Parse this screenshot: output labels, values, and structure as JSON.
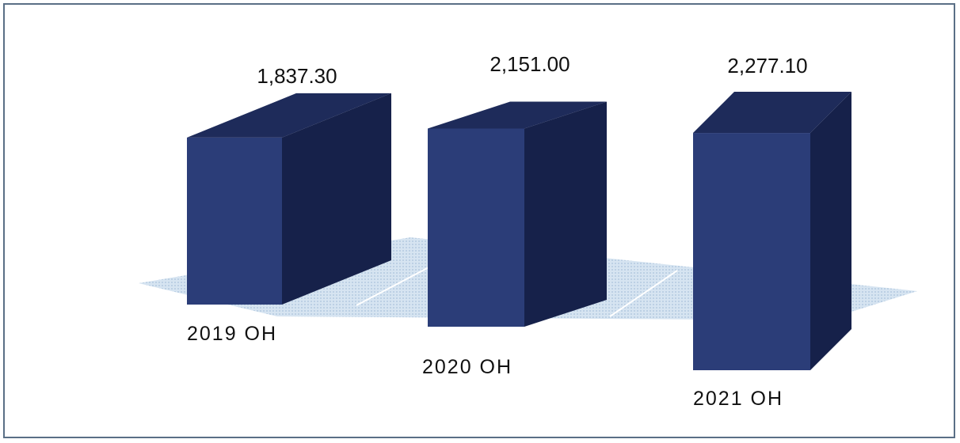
{
  "chart_data": {
    "type": "bar",
    "style": "3d-column",
    "categories": [
      "2019 OH",
      "2020 OH",
      "2021 OH"
    ],
    "series": [
      {
        "values": [
          1837.3,
          2151.0,
          2277.1
        ]
      }
    ],
    "data_labels": [
      "1,837.30",
      "2,151.00",
      "2,277.10"
    ],
    "title": "",
    "xlabel": "",
    "ylabel": "",
    "grid": false,
    "legend": "none",
    "colors": {
      "bar_front": "#2b3d78",
      "bar_side": "#16214a",
      "bar_top": "#1e2b5a",
      "floor": "#c7d9ea",
      "frame": "#5a6f86"
    }
  }
}
